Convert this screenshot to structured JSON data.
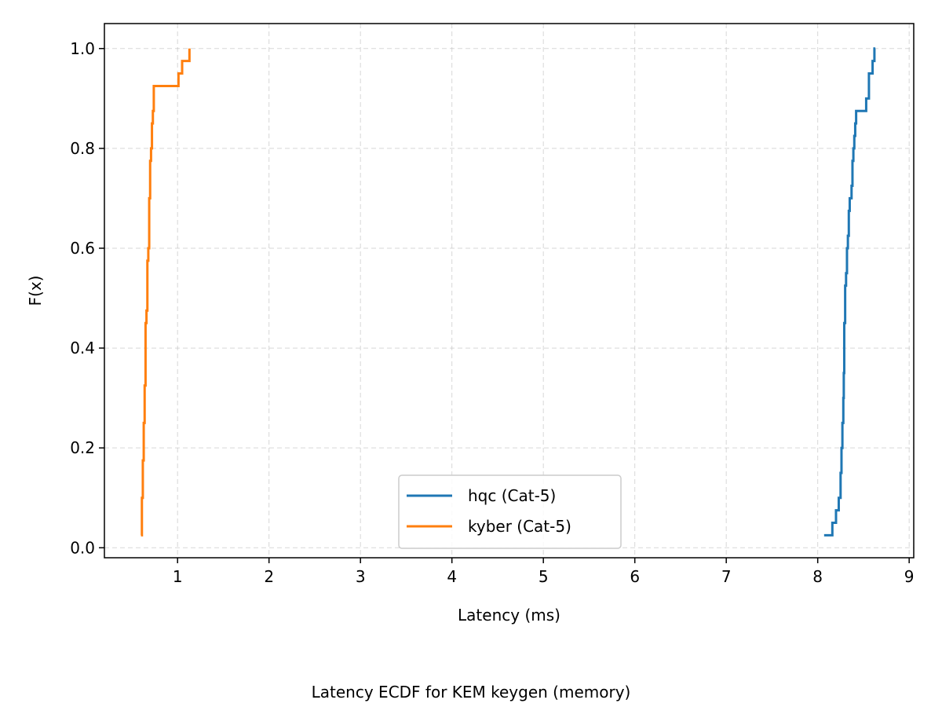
{
  "caption": "Latency ECDF for KEM keygen (memory)",
  "chart_data": {
    "type": "line",
    "step": true,
    "xlabel": "Latency (ms)",
    "ylabel": "F(x)",
    "xlim": [
      0.2,
      9.05
    ],
    "ylim": [
      -0.02,
      1.05
    ],
    "xticks": [
      1,
      2,
      3,
      4,
      5,
      6,
      7,
      8,
      9
    ],
    "yticks": [
      0.0,
      0.2,
      0.4,
      0.6,
      0.8,
      1.0
    ],
    "xtick_labels": [
      "1",
      "2",
      "3",
      "4",
      "5",
      "6",
      "7",
      "8",
      "9"
    ],
    "ytick_labels": [
      "0.0",
      "0.2",
      "0.4",
      "0.6",
      "0.8",
      "1.0"
    ],
    "grid": true,
    "legend_position": "bottom-center",
    "series": [
      {
        "name": "hqc (Cat-5)",
        "color": "#1f77b4",
        "x": [
          8.07,
          8.16,
          8.2,
          8.23,
          8.25,
          8.26,
          8.27,
          8.28,
          8.285,
          8.29,
          8.3,
          8.31,
          8.32,
          8.33,
          8.34,
          8.35,
          8.37,
          8.38,
          8.39,
          8.4,
          8.41,
          8.42,
          8.44,
          8.53,
          8.56,
          8.6,
          8.62,
          8.63
        ],
        "y": [
          0.025,
          0.05,
          0.075,
          0.1,
          0.15,
          0.2,
          0.25,
          0.3,
          0.35,
          0.45,
          0.525,
          0.55,
          0.6,
          0.625,
          0.675,
          0.7,
          0.725,
          0.775,
          0.8,
          0.825,
          0.85,
          0.875,
          0.875,
          0.9,
          0.95,
          0.975,
          1.0,
          1.0
        ]
      },
      {
        "name": "kyber (Cat-5)",
        "color": "#ff7f0e",
        "x": [
          0.6,
          0.61,
          0.62,
          0.63,
          0.64,
          0.65,
          0.66,
          0.67,
          0.68,
          0.69,
          0.7,
          0.71,
          0.72,
          0.73,
          0.74,
          0.75,
          1.01,
          1.05,
          1.13
        ],
        "y": [
          0.025,
          0.1,
          0.175,
          0.25,
          0.325,
          0.45,
          0.475,
          0.575,
          0.6,
          0.7,
          0.775,
          0.8,
          0.85,
          0.875,
          0.925,
          0.925,
          0.95,
          0.975,
          1.0
        ]
      }
    ]
  }
}
